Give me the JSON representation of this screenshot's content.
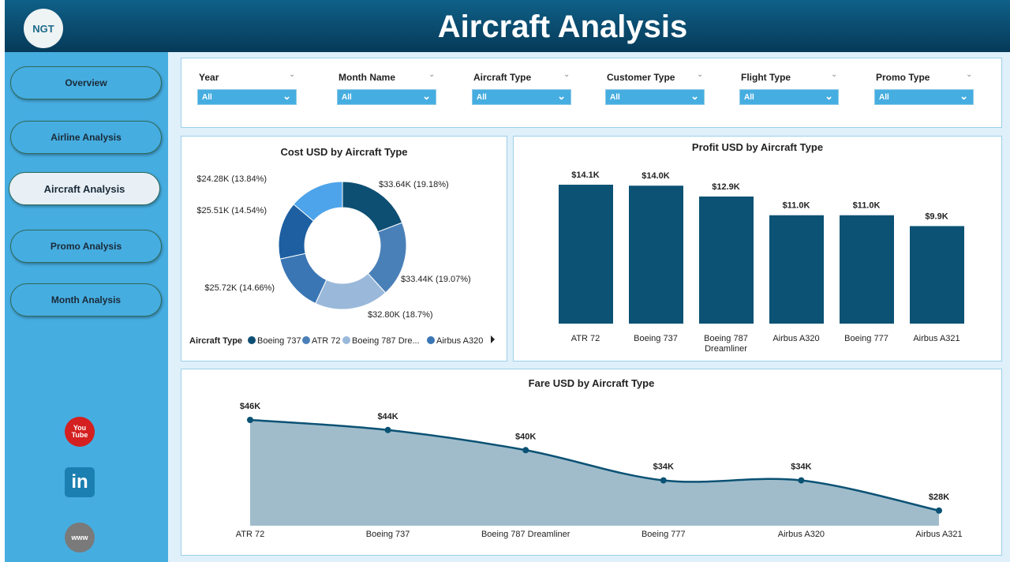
{
  "header": {
    "title": "Aircraft Analysis",
    "logo_text": "NGT"
  },
  "sidebar": {
    "items": [
      {
        "label": "Overview"
      },
      {
        "label": "Airline Analysis"
      },
      {
        "label": "Aircraft Analysis",
        "active": true
      },
      {
        "label": "Promo Analysis"
      },
      {
        "label": "Month Analysis"
      }
    ],
    "social": [
      {
        "icon": "youtube-icon",
        "text": "You Tube"
      },
      {
        "icon": "linkedin-icon",
        "text": "in"
      },
      {
        "icon": "globe-icon",
        "text": "www"
      }
    ]
  },
  "filters": [
    {
      "label": "Year",
      "value": "All"
    },
    {
      "label": "Month Name",
      "value": "All"
    },
    {
      "label": "Aircraft Type",
      "value": "All"
    },
    {
      "label": "Customer Type",
      "value": "All"
    },
    {
      "label": "Flight Type",
      "value": "All"
    },
    {
      "label": "Promo Type",
      "value": "All"
    }
  ],
  "colors": {
    "dark": "#0b5274",
    "sidebar": "#46ade0"
  },
  "chart_data": [
    {
      "type": "pie",
      "title": "Cost USD by Aircraft Type",
      "legend_title": "Aircraft Type",
      "legend": [
        "Boeing 737",
        "ATR 72",
        "Boeing 787 Dre...",
        "Airbus A320"
      ],
      "slices": [
        {
          "label": "$33.64K (19.18%)",
          "value": 33.64,
          "color": "#0d4f73"
        },
        {
          "label": "$33.44K (19.07%)",
          "value": 33.44,
          "color": "#4a80b8"
        },
        {
          "label": "$32.80K (18.7%)",
          "value": 32.8,
          "color": "#9ab9da"
        },
        {
          "label": "$25.72K (14.66%)",
          "value": 25.72,
          "color": "#3a76b4"
        },
        {
          "label": "$25.51K (14.54%)",
          "value": 25.51,
          "color": "#1d5fa1"
        },
        {
          "label": "$24.28K (13.84%)",
          "value": 24.28,
          "color": "#4ea4ea"
        }
      ]
    },
    {
      "type": "bar",
      "title": "Profit USD by Aircraft Type",
      "categories": [
        "ATR 72",
        "Boeing 737",
        "Boeing 787 Dreamliner",
        "Airbus A320",
        "Boeing 777",
        "Airbus A321"
      ],
      "values": [
        14.1,
        14.0,
        12.9,
        11.0,
        11.0,
        9.9
      ],
      "labels": [
        "$14.1K",
        "$14.0K",
        "$12.9K",
        "$11.0K",
        "$11.0K",
        "$9.9K"
      ],
      "ylim": [
        0,
        14.1
      ]
    },
    {
      "type": "area",
      "title": "Fare USD by Aircraft Type",
      "categories": [
        "ATR 72",
        "Boeing 737",
        "Boeing 787 Dreamliner",
        "Boeing 777",
        "Airbus A320",
        "Airbus A321"
      ],
      "values": [
        46,
        44,
        40,
        34,
        34,
        28
      ],
      "labels": [
        "$46K",
        "$44K",
        "$40K",
        "$34K",
        "$34K",
        "$28K"
      ],
      "ylim": [
        25,
        46
      ]
    }
  ]
}
